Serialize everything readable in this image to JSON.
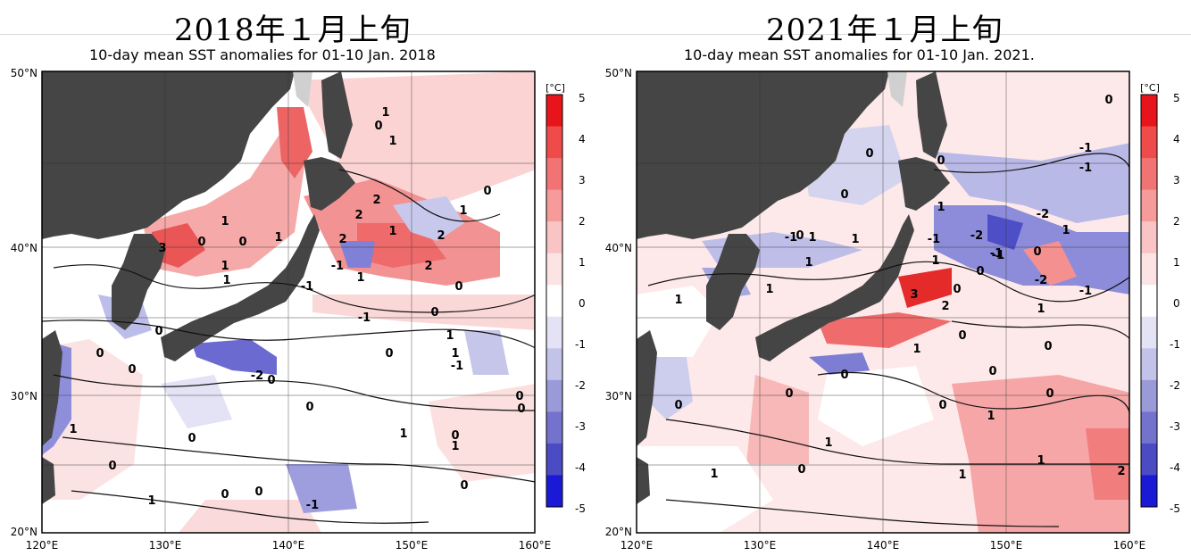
{
  "panels": [
    {
      "heading": "2018年１月上旬",
      "chart_title": "10-day mean SST anomalies for 01-10 Jan. 2018",
      "x_ticks": [
        "120°E",
        "130°E",
        "140°E",
        "150°E",
        "160°E"
      ],
      "y_ticks": [
        "50°N",
        "40°N",
        "30°N",
        "20°N"
      ],
      "contour_labels": [
        "3",
        "1",
        "0",
        "0",
        "1",
        "1",
        "0",
        "1",
        "1",
        "2",
        "2",
        "2",
        "1",
        "2",
        "0",
        "1",
        "1",
        "-1",
        "-1",
        "1",
        "2",
        "0",
        "-1",
        "0",
        "0",
        "0",
        "1",
        "0",
        "-2",
        "0",
        "1",
        "-1",
        "0",
        "0",
        "0",
        "1",
        "0",
        "1",
        "0",
        "0",
        "0",
        "1",
        "0",
        "0",
        "-1",
        "1",
        "0"
      ]
    },
    {
      "heading": "2021年１月上旬",
      "chart_title": "10-day mean SST anomalies for 01-10 Jan. 2021.",
      "x_ticks": [
        "120°E",
        "130°E",
        "140°E",
        "150°E",
        "160°E"
      ],
      "y_ticks": [
        "50°N",
        "40°N",
        "30°N",
        "20°N"
      ],
      "contour_labels": [
        "0",
        "0",
        "0",
        "-1",
        "-1",
        "0",
        "1",
        "1",
        "0",
        "-1",
        "1",
        "-1",
        "-1",
        "-2",
        "-2",
        "1",
        "1",
        "1",
        "0",
        "-1",
        "0",
        "-2",
        "-1",
        "3",
        "2",
        "0",
        "1",
        "1",
        "0",
        "0",
        "0",
        "0",
        "0",
        "1",
        "1",
        "0",
        "0",
        "1",
        "0",
        "1",
        "1",
        "0",
        "1",
        "2",
        "1"
      ]
    }
  ],
  "colorbar": {
    "unit": "[°C]",
    "ticks": [
      "5",
      "4",
      "3",
      "2",
      "1",
      "0",
      "-1",
      "-2",
      "-3",
      "-4",
      "-5"
    ],
    "colors": [
      "#e8141b",
      "#ef4b4b",
      "#f27373",
      "#f69a9a",
      "#fac4c4",
      "#fde4e4",
      "#ffffff",
      "#e3e3f5",
      "#c3c3ea",
      "#9a9ad9",
      "#7373ce",
      "#4b4bc3",
      "#1a1ad6"
    ]
  },
  "chart_data": [
    {
      "type": "heatmap",
      "title": "10-day mean SST anomalies for 01-10 Jan. 2018",
      "x_range": [
        120,
        160
      ],
      "y_range": [
        20,
        50
      ],
      "value_range": [
        -5,
        5
      ],
      "unit": "°C"
    },
    {
      "type": "heatmap",
      "title": "10-day mean SST anomalies for 01-10 Jan. 2021.",
      "x_range": [
        120,
        160
      ],
      "y_range": [
        20,
        50
      ],
      "value_range": [
        -5,
        5
      ],
      "unit": "°C"
    }
  ]
}
